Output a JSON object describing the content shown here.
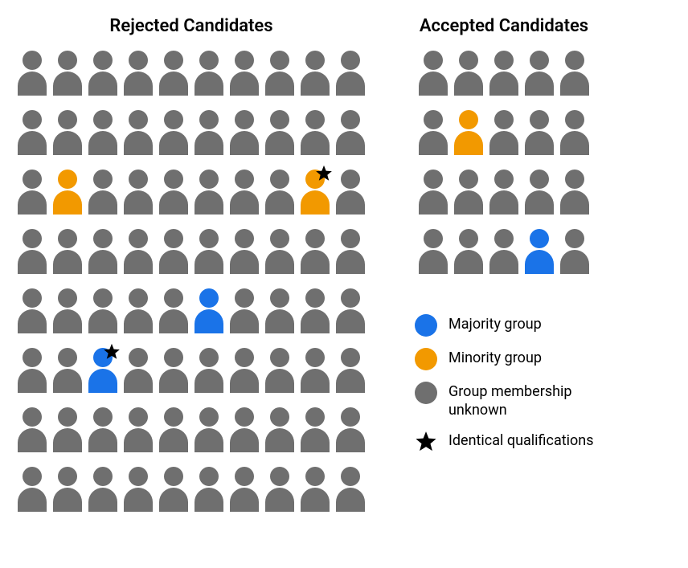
{
  "colors": {
    "unknown": "#6f6f6f",
    "majority": "#1a73e8",
    "minority": "#f29900",
    "star_fill": "#000000"
  },
  "panels": {
    "rejected": {
      "title": "Rejected Candidates",
      "cols": 10,
      "rows_count": 8,
      "rows": [
        [
          {
            "g": "u"
          },
          {
            "g": "u"
          },
          {
            "g": "u"
          },
          {
            "g": "u"
          },
          {
            "g": "u"
          },
          {
            "g": "u"
          },
          {
            "g": "u"
          },
          {
            "g": "u"
          },
          {
            "g": "u"
          },
          {
            "g": "u"
          }
        ],
        [
          {
            "g": "u"
          },
          {
            "g": "u"
          },
          {
            "g": "u"
          },
          {
            "g": "u"
          },
          {
            "g": "u"
          },
          {
            "g": "u"
          },
          {
            "g": "u"
          },
          {
            "g": "u"
          },
          {
            "g": "u"
          },
          {
            "g": "u"
          }
        ],
        [
          {
            "g": "u"
          },
          {
            "g": "min"
          },
          {
            "g": "u"
          },
          {
            "g": "u"
          },
          {
            "g": "u"
          },
          {
            "g": "u"
          },
          {
            "g": "u"
          },
          {
            "g": "u"
          },
          {
            "g": "min",
            "star": true
          },
          {
            "g": "u"
          }
        ],
        [
          {
            "g": "u"
          },
          {
            "g": "u"
          },
          {
            "g": "u"
          },
          {
            "g": "u"
          },
          {
            "g": "u"
          },
          {
            "g": "u"
          },
          {
            "g": "u"
          },
          {
            "g": "u"
          },
          {
            "g": "u"
          },
          {
            "g": "u"
          }
        ],
        [
          {
            "g": "u"
          },
          {
            "g": "u"
          },
          {
            "g": "u"
          },
          {
            "g": "u"
          },
          {
            "g": "u"
          },
          {
            "g": "maj"
          },
          {
            "g": "u"
          },
          {
            "g": "u"
          },
          {
            "g": "u"
          },
          {
            "g": "u"
          }
        ],
        [
          {
            "g": "u"
          },
          {
            "g": "u"
          },
          {
            "g": "maj",
            "star": true
          },
          {
            "g": "u"
          },
          {
            "g": "u"
          },
          {
            "g": "u"
          },
          {
            "g": "u"
          },
          {
            "g": "u"
          },
          {
            "g": "u"
          },
          {
            "g": "u"
          }
        ],
        [
          {
            "g": "u"
          },
          {
            "g": "u"
          },
          {
            "g": "u"
          },
          {
            "g": "u"
          },
          {
            "g": "u"
          },
          {
            "g": "u"
          },
          {
            "g": "u"
          },
          {
            "g": "u"
          },
          {
            "g": "u"
          },
          {
            "g": "u"
          }
        ],
        [
          {
            "g": "u"
          },
          {
            "g": "u"
          },
          {
            "g": "u"
          },
          {
            "g": "u"
          },
          {
            "g": "u"
          },
          {
            "g": "u"
          },
          {
            "g": "u"
          },
          {
            "g": "u"
          },
          {
            "g": "u"
          },
          {
            "g": "u"
          }
        ]
      ]
    },
    "accepted": {
      "title": "Accepted Candidates",
      "cols": 5,
      "rows_count": 4,
      "rows": [
        [
          {
            "g": "u"
          },
          {
            "g": "u"
          },
          {
            "g": "u"
          },
          {
            "g": "u"
          },
          {
            "g": "u"
          }
        ],
        [
          {
            "g": "u"
          },
          {
            "g": "min"
          },
          {
            "g": "u"
          },
          {
            "g": "u"
          },
          {
            "g": "u"
          }
        ],
        [
          {
            "g": "u"
          },
          {
            "g": "u"
          },
          {
            "g": "u"
          },
          {
            "g": "u"
          },
          {
            "g": "u"
          }
        ],
        [
          {
            "g": "u"
          },
          {
            "g": "u"
          },
          {
            "g": "u"
          },
          {
            "g": "maj"
          },
          {
            "g": "u"
          }
        ]
      ]
    }
  },
  "legend": {
    "items": [
      {
        "kind": "swatch",
        "color_key": "majority",
        "label": "Majority group"
      },
      {
        "kind": "swatch",
        "color_key": "minority",
        "label": "Minority group"
      },
      {
        "kind": "swatch",
        "color_key": "unknown",
        "label": "Group membership unknown"
      },
      {
        "kind": "star",
        "label": "Identical qualifications"
      }
    ]
  }
}
